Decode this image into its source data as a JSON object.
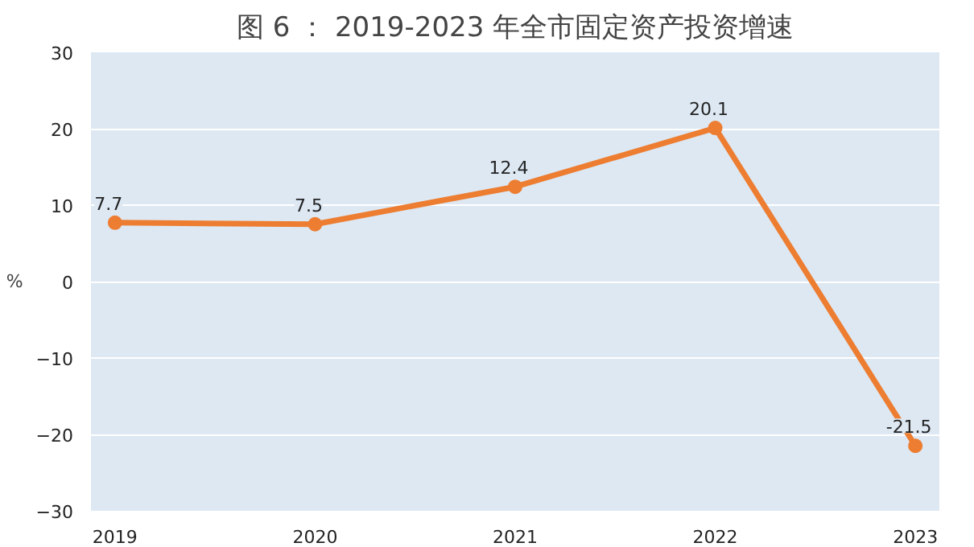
{
  "chart_data": {
    "type": "line",
    "title": "图 6 ： 2019-2023 年全市固定资产投资增速",
    "ylabel": "%",
    "categories": [
      "2019",
      "2020",
      "2021",
      "2022",
      "2023"
    ],
    "series": [
      {
        "color": "#ed7d31",
        "values": [
          7.7,
          7.5,
          12.4,
          20.1,
          -21.5
        ]
      }
    ],
    "ylim": [
      -30,
      30
    ],
    "yticks": [
      -30,
      -20,
      -10,
      0,
      10,
      20,
      30
    ],
    "grid": "y",
    "marker": "circle",
    "line_style": "solid",
    "data_labels": true
  }
}
